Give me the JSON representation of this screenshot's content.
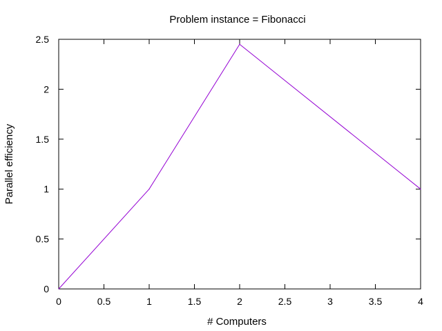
{
  "chart_data": {
    "type": "line",
    "title": "Problem instance = Fibonacci",
    "xlabel": "# Computers",
    "ylabel": "Parallel efficiency",
    "xlim": [
      0,
      4
    ],
    "ylim": [
      0,
      2.5
    ],
    "x_ticks": [
      "0",
      "0.5",
      "1",
      "1.5",
      "2",
      "2.5",
      "3",
      "3.5",
      "4"
    ],
    "y_ticks": [
      "0",
      "0.5",
      "1",
      "1.5",
      "2",
      "2.5"
    ],
    "grid": false,
    "legend": "none",
    "series": [
      {
        "color": "#9400d3",
        "x": [
          0,
          1,
          2,
          4
        ],
        "y": [
          0,
          1,
          2.45,
          1
        ]
      }
    ]
  }
}
